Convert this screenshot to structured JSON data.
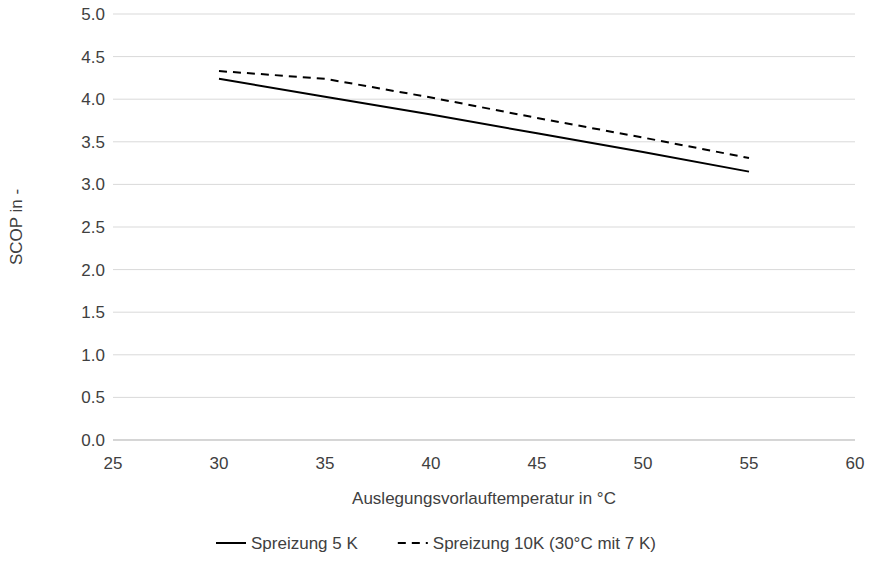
{
  "chart_data": {
    "type": "line",
    "x_label": "Auslegungsvorlauftemperatur in °C",
    "y_label": "SCOP in -",
    "x": [
      30,
      35,
      40,
      45,
      50,
      55
    ],
    "series": [
      {
        "name": "Spreizung 5 K",
        "color": "#000000",
        "line_style": "solid",
        "values": [
          4.24,
          4.03,
          3.82,
          3.6,
          3.38,
          3.15
        ]
      },
      {
        "name": "Spreizung 10K (30°C mit 7 K)",
        "color": "#000000",
        "line_style": "dashed",
        "values": [
          4.33,
          4.24,
          4.02,
          3.78,
          3.55,
          3.31
        ]
      }
    ],
    "xlim": [
      25,
      60
    ],
    "xticks": [
      25,
      30,
      35,
      40,
      45,
      50,
      55,
      60
    ],
    "ylim": [
      0,
      5
    ],
    "yticks": [
      {
        "value": 0,
        "label": "0.0"
      },
      0.5,
      {
        "value": 1,
        "label": "1.0"
      },
      1.5,
      {
        "value": 2,
        "label": "2.0"
      },
      2.5,
      {
        "value": 3,
        "label": "3.0"
      },
      3.5,
      {
        "value": 4,
        "label": "4.0"
      },
      4.5,
      {
        "value": 5,
        "label": "5.0"
      }
    ],
    "grid": true,
    "legend": "bottom"
  }
}
